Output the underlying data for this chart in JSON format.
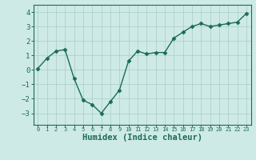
{
  "x": [
    0,
    1,
    2,
    3,
    4,
    5,
    6,
    7,
    8,
    9,
    10,
    11,
    12,
    13,
    14,
    15,
    16,
    17,
    18,
    19,
    20,
    21,
    22,
    23
  ],
  "y": [
    0.1,
    0.8,
    1.3,
    1.4,
    -0.6,
    -2.1,
    -2.4,
    -3.0,
    -2.2,
    -1.4,
    0.6,
    1.3,
    1.1,
    1.2,
    1.2,
    2.2,
    2.6,
    3.0,
    3.2,
    3.0,
    3.1,
    3.2,
    3.3,
    3.9
  ],
  "line_color": "#1a6b5a",
  "marker": "D",
  "markersize": 2.5,
  "linewidth": 1.0,
  "xlabel": "Humidex (Indice chaleur)",
  "bg_color": "#ceeae6",
  "grid_color": "#b0d0cc",
  "tick_color": "#1a6b5a",
  "label_color": "#1a6b5a",
  "ylim": [
    -3.8,
    4.5
  ],
  "xlim": [
    -0.5,
    23.5
  ],
  "yticks": [
    -3,
    -2,
    -1,
    0,
    1,
    2,
    3,
    4
  ],
  "xticks": [
    0,
    1,
    2,
    3,
    4,
    5,
    6,
    7,
    8,
    9,
    10,
    11,
    12,
    13,
    14,
    15,
    16,
    17,
    18,
    19,
    20,
    21,
    22,
    23
  ]
}
